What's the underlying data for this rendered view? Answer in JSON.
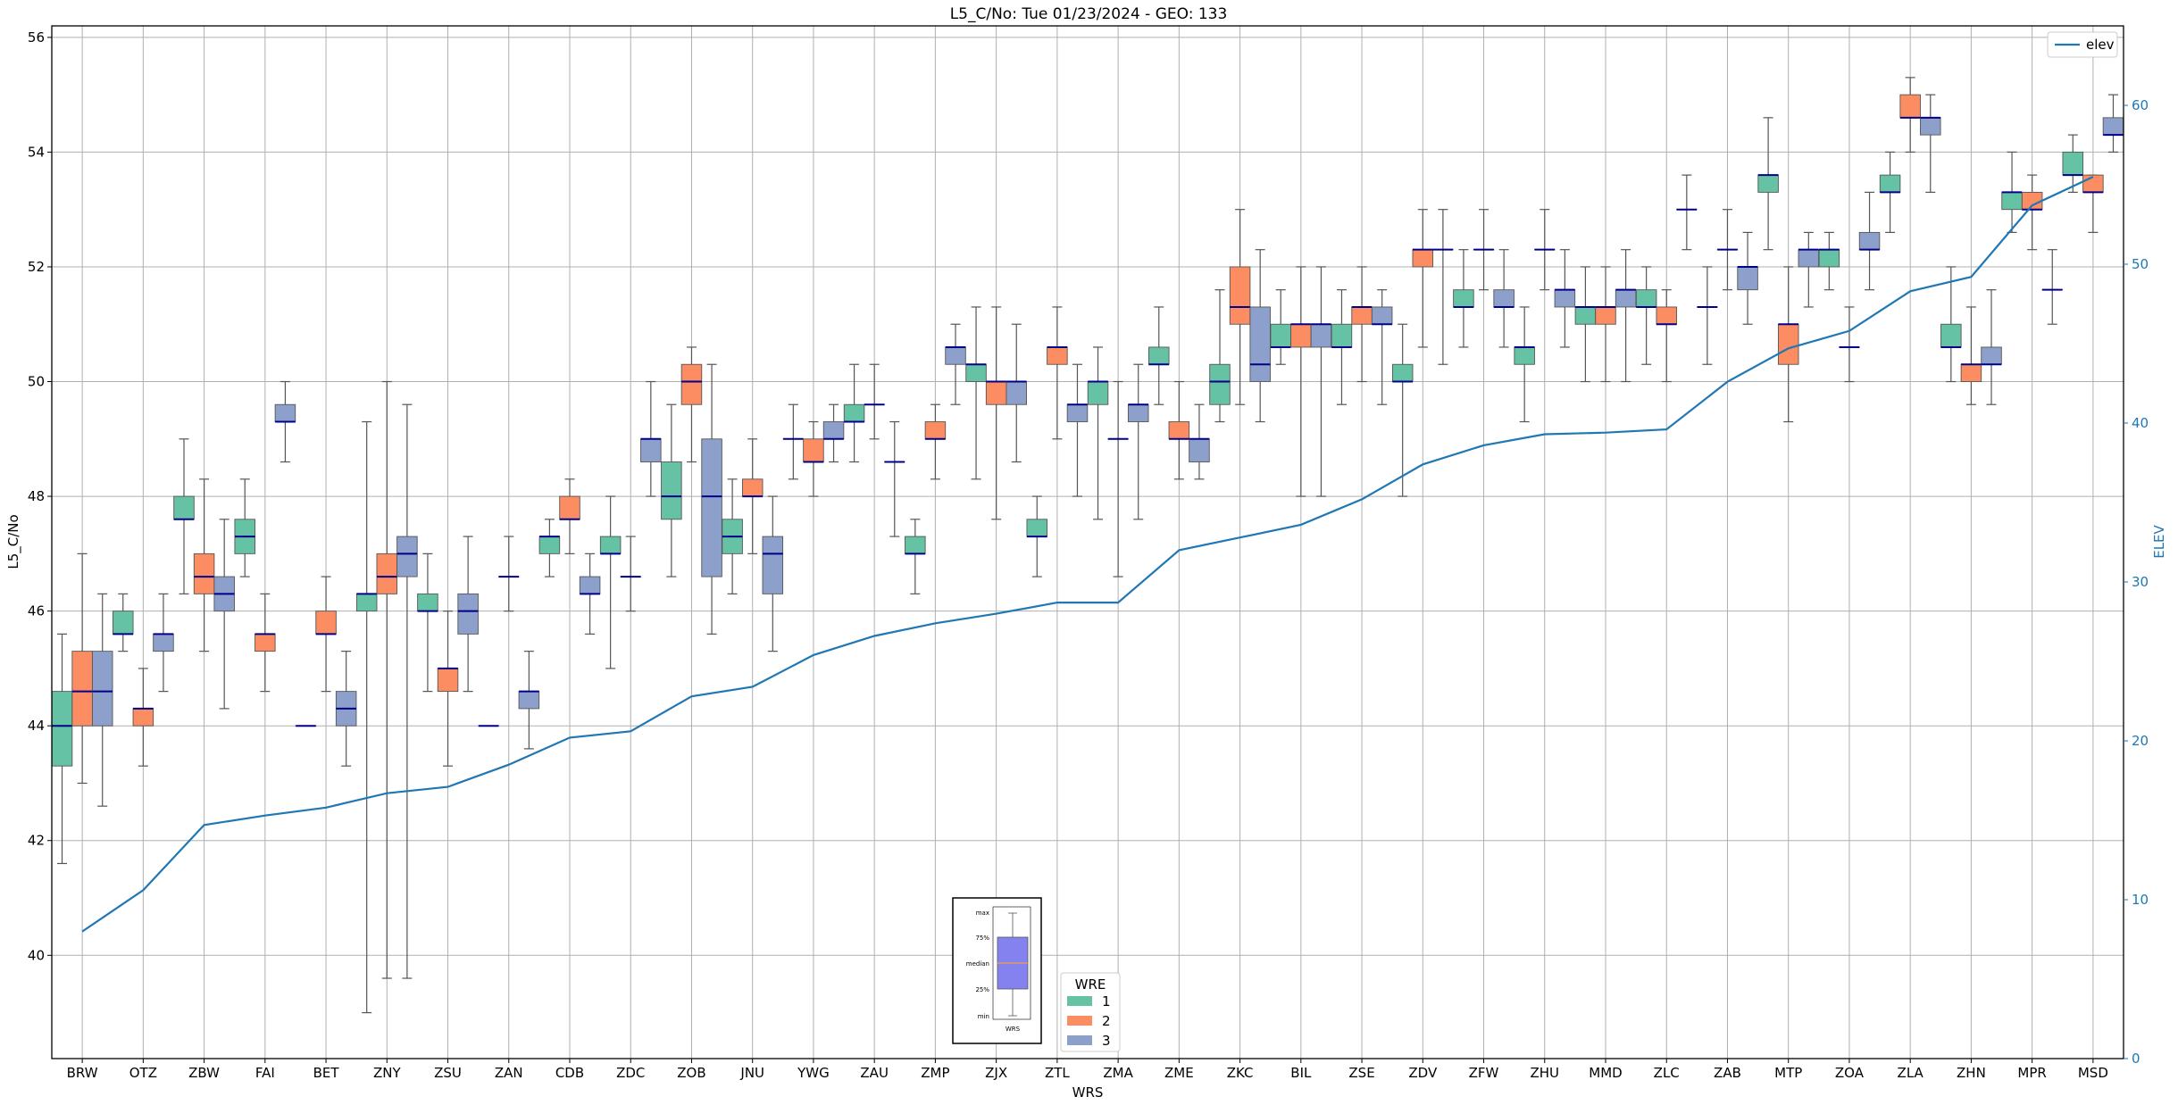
{
  "chart_data": {
    "type": "box",
    "title": "L5_C/No: Tue 01/23/2024 - GEO: 133",
    "xlabel": "WRS",
    "ylabel": "L5_C/No",
    "y2label": "ELEV",
    "ylim": [
      38.2,
      56.2
    ],
    "y2lim": [
      0,
      65
    ],
    "yticks": [
      40,
      42,
      44,
      46,
      48,
      50,
      52,
      54,
      56
    ],
    "y2ticks": [
      0,
      10,
      20,
      30,
      40,
      50,
      60
    ],
    "grid": true,
    "categories": [
      "BRW",
      "OTZ",
      "ZBW",
      "FAI",
      "BET",
      "ZNY",
      "ZSU",
      "ZAN",
      "CDB",
      "ZDC",
      "ZOB",
      "JNU",
      "YWG",
      "ZAU",
      "ZMP",
      "ZJX",
      "ZTL",
      "ZMA",
      "ZME",
      "ZKC",
      "BIL",
      "ZSE",
      "ZDV",
      "ZFW",
      "ZHU",
      "MMD",
      "ZLC",
      "ZAB",
      "MTP",
      "ZOA",
      "ZLA",
      "ZHN",
      "MPR",
      "MSD"
    ],
    "legend_title": "WRE",
    "series_names": [
      "1",
      "2",
      "3"
    ],
    "colors": {
      "1": "#66c2a5",
      "2": "#fc8d62",
      "3": "#8da0cb"
    },
    "median_color": "#00008b",
    "whisker_color": "#555555",
    "elev_color": "#1f77b4",
    "elev_legend": "elev",
    "legend_position": "upper-right",
    "boxes": [
      [
        [
          41.6,
          43.3,
          44.0,
          44.6,
          45.6
        ],
        [
          43.0,
          44.0,
          44.6,
          45.3,
          47.0
        ],
        [
          42.6,
          44.0,
          44.6,
          45.3,
          46.3
        ]
      ],
      [
        [
          45.3,
          45.6,
          45.6,
          46.0,
          46.3
        ],
        [
          43.3,
          44.0,
          44.3,
          44.3,
          45.0
        ],
        [
          44.6,
          45.3,
          45.6,
          45.6,
          46.3
        ]
      ],
      [
        [
          46.3,
          47.6,
          47.6,
          48.0,
          49.0
        ],
        [
          45.3,
          46.3,
          46.6,
          47.0,
          48.3
        ],
        [
          44.3,
          46.0,
          46.3,
          46.6,
          47.6
        ]
      ],
      [
        [
          46.6,
          47.0,
          47.3,
          47.6,
          48.3
        ],
        [
          44.6,
          45.3,
          45.6,
          45.6,
          46.3
        ],
        [
          48.6,
          49.3,
          49.3,
          49.6,
          50.0
        ]
      ],
      [
        [
          44.0,
          44.0,
          44.0,
          44.0,
          44.0
        ],
        [
          44.6,
          45.6,
          45.6,
          46.0,
          46.6
        ],
        [
          43.3,
          44.0,
          44.3,
          44.6,
          45.3
        ]
      ],
      [
        [
          39.0,
          46.0,
          46.3,
          46.3,
          49.3
        ],
        [
          39.6,
          46.3,
          46.6,
          47.0,
          50.0
        ],
        [
          39.6,
          46.6,
          47.0,
          47.3,
          49.6
        ]
      ],
      [
        [
          44.6,
          46.0,
          46.0,
          46.3,
          47.0
        ],
        [
          43.3,
          44.6,
          45.0,
          45.0,
          46.0
        ],
        [
          44.6,
          45.6,
          46.0,
          46.3,
          47.3
        ]
      ],
      [
        [
          44.0,
          44.0,
          44.0,
          44.0,
          44.0
        ],
        [
          46.0,
          46.6,
          46.6,
          46.6,
          47.3
        ],
        [
          43.6,
          44.3,
          44.6,
          44.6,
          45.3
        ]
      ],
      [
        [
          46.6,
          47.0,
          47.3,
          47.3,
          47.6
        ],
        [
          47.0,
          47.6,
          47.6,
          48.0,
          48.3
        ],
        [
          45.6,
          46.3,
          46.3,
          46.6,
          47.0
        ]
      ],
      [
        [
          45.0,
          47.0,
          47.0,
          47.3,
          48.0
        ],
        [
          46.0,
          46.6,
          46.6,
          46.6,
          47.3
        ],
        [
          48.0,
          48.6,
          49.0,
          49.0,
          50.0
        ]
      ],
      [
        [
          46.6,
          47.6,
          48.0,
          48.6,
          49.6
        ],
        [
          48.6,
          49.6,
          50.0,
          50.3,
          50.6
        ],
        [
          45.6,
          46.6,
          48.0,
          49.0,
          50.3
        ]
      ],
      [
        [
          46.3,
          47.0,
          47.3,
          47.6,
          48.3
        ],
        [
          47.0,
          48.0,
          48.0,
          48.3,
          49.0
        ],
        [
          45.3,
          46.3,
          47.0,
          47.3,
          48.0
        ]
      ],
      [
        [
          48.3,
          49.0,
          49.0,
          49.0,
          49.6
        ],
        [
          48.0,
          48.6,
          48.6,
          49.0,
          49.3
        ],
        [
          48.6,
          49.0,
          49.0,
          49.3,
          49.6
        ]
      ],
      [
        [
          48.6,
          49.3,
          49.3,
          49.6,
          50.3
        ],
        [
          49.0,
          49.6,
          49.6,
          49.6,
          50.3
        ],
        [
          47.3,
          48.6,
          48.6,
          48.6,
          49.3
        ]
      ],
      [
        [
          46.3,
          47.0,
          47.0,
          47.3,
          47.6
        ],
        [
          48.3,
          49.0,
          49.0,
          49.3,
          49.6
        ],
        [
          49.6,
          50.3,
          50.6,
          50.6,
          51.0
        ]
      ],
      [
        [
          48.3,
          50.0,
          50.3,
          50.3,
          51.3
        ],
        [
          47.6,
          49.6,
          50.0,
          50.0,
          51.3
        ],
        [
          48.6,
          49.6,
          50.0,
          50.0,
          51.0
        ]
      ],
      [
        [
          46.6,
          47.3,
          47.3,
          47.6,
          48.0
        ],
        [
          49.0,
          50.3,
          50.6,
          50.6,
          51.3
        ],
        [
          48.0,
          49.3,
          49.6,
          49.6,
          50.3
        ]
      ],
      [
        [
          47.6,
          49.6,
          50.0,
          50.0,
          50.6
        ],
        [
          46.6,
          49.0,
          49.0,
          49.0,
          50.0
        ],
        [
          47.6,
          49.3,
          49.6,
          49.6,
          50.3
        ]
      ],
      [
        [
          49.6,
          50.3,
          50.3,
          50.6,
          51.3
        ],
        [
          48.3,
          49.0,
          49.0,
          49.3,
          50.0
        ],
        [
          48.3,
          48.6,
          49.0,
          49.0,
          49.6
        ]
      ],
      [
        [
          49.3,
          49.6,
          50.0,
          50.3,
          51.6
        ],
        [
          49.6,
          51.0,
          51.3,
          52.0,
          53.0
        ],
        [
          49.3,
          50.0,
          50.3,
          51.3,
          52.3
        ]
      ],
      [
        [
          50.3,
          50.6,
          50.6,
          51.0,
          51.6
        ],
        [
          48.0,
          50.6,
          51.0,
          51.0,
          52.0
        ],
        [
          48.0,
          50.6,
          51.0,
          51.0,
          52.0
        ]
      ],
      [
        [
          49.6,
          50.6,
          50.6,
          51.0,
          51.6
        ],
        [
          50.0,
          51.0,
          51.3,
          51.3,
          52.0
        ],
        [
          49.6,
          51.0,
          51.0,
          51.3,
          51.6
        ]
      ],
      [
        [
          48.0,
          50.0,
          50.0,
          50.3,
          51.0
        ],
        [
          50.6,
          52.0,
          52.3,
          52.3,
          53.0
        ],
        [
          50.3,
          52.3,
          52.3,
          52.3,
          53.0
        ]
      ],
      [
        [
          50.6,
          51.3,
          51.3,
          51.6,
          52.3
        ],
        [
          51.6,
          52.3,
          52.3,
          52.3,
          53.0
        ],
        [
          50.6,
          51.3,
          51.3,
          51.6,
          52.3
        ]
      ],
      [
        [
          49.3,
          50.3,
          50.6,
          50.6,
          51.3
        ],
        [
          51.6,
          52.3,
          52.3,
          52.3,
          53.0
        ],
        [
          50.6,
          51.3,
          51.6,
          51.6,
          52.3
        ]
      ],
      [
        [
          50.0,
          51.0,
          51.3,
          51.3,
          52.0
        ],
        [
          50.0,
          51.0,
          51.3,
          51.3,
          52.0
        ],
        [
          50.0,
          51.3,
          51.6,
          51.6,
          52.3
        ]
      ],
      [
        [
          50.3,
          51.3,
          51.3,
          51.6,
          52.0
        ],
        [
          50.0,
          51.0,
          51.0,
          51.3,
          51.6
        ],
        [
          52.3,
          53.0,
          53.0,
          53.0,
          53.6
        ]
      ],
      [
        [
          50.3,
          51.3,
          51.3,
          51.3,
          52.0
        ],
        [
          51.6,
          52.3,
          52.3,
          52.3,
          53.0
        ],
        [
          51.0,
          51.6,
          52.0,
          52.0,
          52.6
        ]
      ],
      [
        [
          52.3,
          53.3,
          53.6,
          53.6,
          54.6
        ],
        [
          49.3,
          50.3,
          51.0,
          51.0,
          52.0
        ],
        [
          51.3,
          52.0,
          52.3,
          52.3,
          52.6
        ]
      ],
      [
        [
          51.6,
          52.0,
          52.3,
          52.3,
          52.6
        ],
        [
          50.0,
          50.6,
          50.6,
          50.6,
          51.3
        ],
        [
          51.6,
          52.3,
          52.3,
          52.6,
          53.3
        ]
      ],
      [
        [
          52.6,
          53.3,
          53.3,
          53.6,
          54.0
        ],
        [
          54.0,
          54.6,
          54.6,
          55.0,
          55.3
        ],
        [
          53.3,
          54.3,
          54.6,
          54.6,
          55.0
        ]
      ],
      [
        [
          50.0,
          50.6,
          50.6,
          51.0,
          52.0
        ],
        [
          49.6,
          50.0,
          50.3,
          50.3,
          51.3
        ],
        [
          49.6,
          50.3,
          50.3,
          50.6,
          51.6
        ]
      ],
      [
        [
          52.6,
          53.0,
          53.3,
          53.3,
          54.0
        ],
        [
          52.3,
          53.0,
          53.0,
          53.3,
          53.6
        ],
        [
          51.0,
          51.6,
          51.6,
          51.6,
          52.3
        ]
      ],
      [
        [
          53.3,
          53.6,
          53.6,
          54.0,
          54.3
        ],
        [
          52.6,
          53.3,
          53.3,
          53.6,
          53.6
        ],
        [
          54.0,
          54.3,
          54.3,
          54.6,
          55.0
        ]
      ]
    ],
    "elev": [
      8.0,
      10.6,
      14.7,
      15.3,
      15.8,
      16.7,
      17.1,
      18.5,
      20.2,
      20.6,
      22.8,
      23.4,
      25.4,
      26.6,
      27.4,
      28.0,
      28.7,
      28.7,
      32.0,
      32.8,
      33.6,
      35.2,
      37.4,
      38.6,
      39.3,
      39.4,
      39.6,
      42.6,
      44.7,
      45.8,
      48.3,
      49.2,
      53.7,
      55.5
    ]
  },
  "inset": {
    "labels": [
      "max",
      "75%",
      "median",
      "25%",
      "min"
    ],
    "xlabel": "WRS"
  }
}
